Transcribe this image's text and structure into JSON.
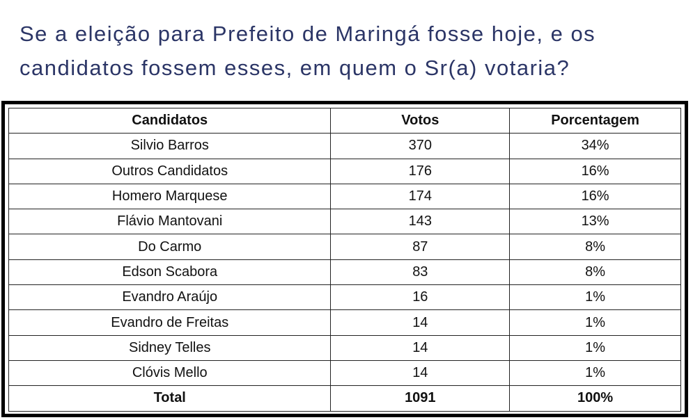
{
  "title": "Se a eleição para Prefeito de Maringá fosse hoje, e os candidatos fossem esses, em quem o Sr(a) votaria?",
  "table": {
    "headers": [
      "Candidatos",
      "Votos",
      "Porcentagem"
    ],
    "rows": [
      [
        "Silvio Barros",
        "370",
        "34%"
      ],
      [
        "Outros Candidatos",
        "176",
        "16%"
      ],
      [
        "Homero Marquese",
        "174",
        "16%"
      ],
      [
        "Flávio Mantovani",
        "143",
        "13%"
      ],
      [
        "Do Carmo",
        "87",
        "8%"
      ],
      [
        "Edson Scabora",
        "83",
        "8%"
      ],
      [
        "Evandro Araújo",
        "16",
        "1%"
      ],
      [
        "Evandro de Freitas",
        "14",
        "1%"
      ],
      [
        "Sidney Telles",
        "14",
        "1%"
      ],
      [
        "Clóvis Mello",
        "14",
        "1%"
      ]
    ],
    "total": [
      "Total",
      "1091",
      "100%"
    ]
  }
}
